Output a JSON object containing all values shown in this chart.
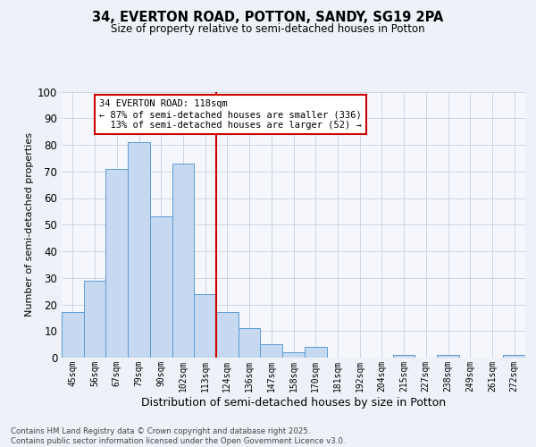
{
  "title_line1": "34, EVERTON ROAD, POTTON, SANDY, SG19 2PA",
  "title_line2": "Size of property relative to semi-detached houses in Potton",
  "xlabel": "Distribution of semi-detached houses by size in Potton",
  "ylabel": "Number of semi-detached properties",
  "categories": [
    "45sqm",
    "56sqm",
    "67sqm",
    "79sqm",
    "90sqm",
    "102sqm",
    "113sqm",
    "124sqm",
    "136sqm",
    "147sqm",
    "158sqm",
    "170sqm",
    "181sqm",
    "192sqm",
    "204sqm",
    "215sqm",
    "227sqm",
    "238sqm",
    "249sqm",
    "261sqm",
    "272sqm"
  ],
  "values": [
    17,
    29,
    71,
    81,
    53,
    73,
    24,
    17,
    11,
    5,
    2,
    4,
    0,
    0,
    0,
    1,
    0,
    1,
    0,
    0,
    1
  ],
  "bar_color": "#c6d9f0",
  "bar_edge_color": "#5b9bd5",
  "vline_x_index": 7,
  "vline_color": "#cc0000",
  "annotation_text": "34 EVERTON ROAD: 118sqm\n← 87% of semi-detached houses are smaller (336)\n  13% of semi-detached houses are larger (52) →",
  "annotation_box_color": "#cc0000",
  "ylim": [
    0,
    100
  ],
  "yticks": [
    0,
    10,
    20,
    30,
    40,
    50,
    60,
    70,
    80,
    90,
    100
  ],
  "footnote": "Contains HM Land Registry data © Crown copyright and database right 2025.\nContains public sector information licensed under the Open Government Licence v3.0.",
  "bg_color": "#eef2f8",
  "plot_bg_color": "#f5f7fc",
  "grid_color": "#c8d0de"
}
